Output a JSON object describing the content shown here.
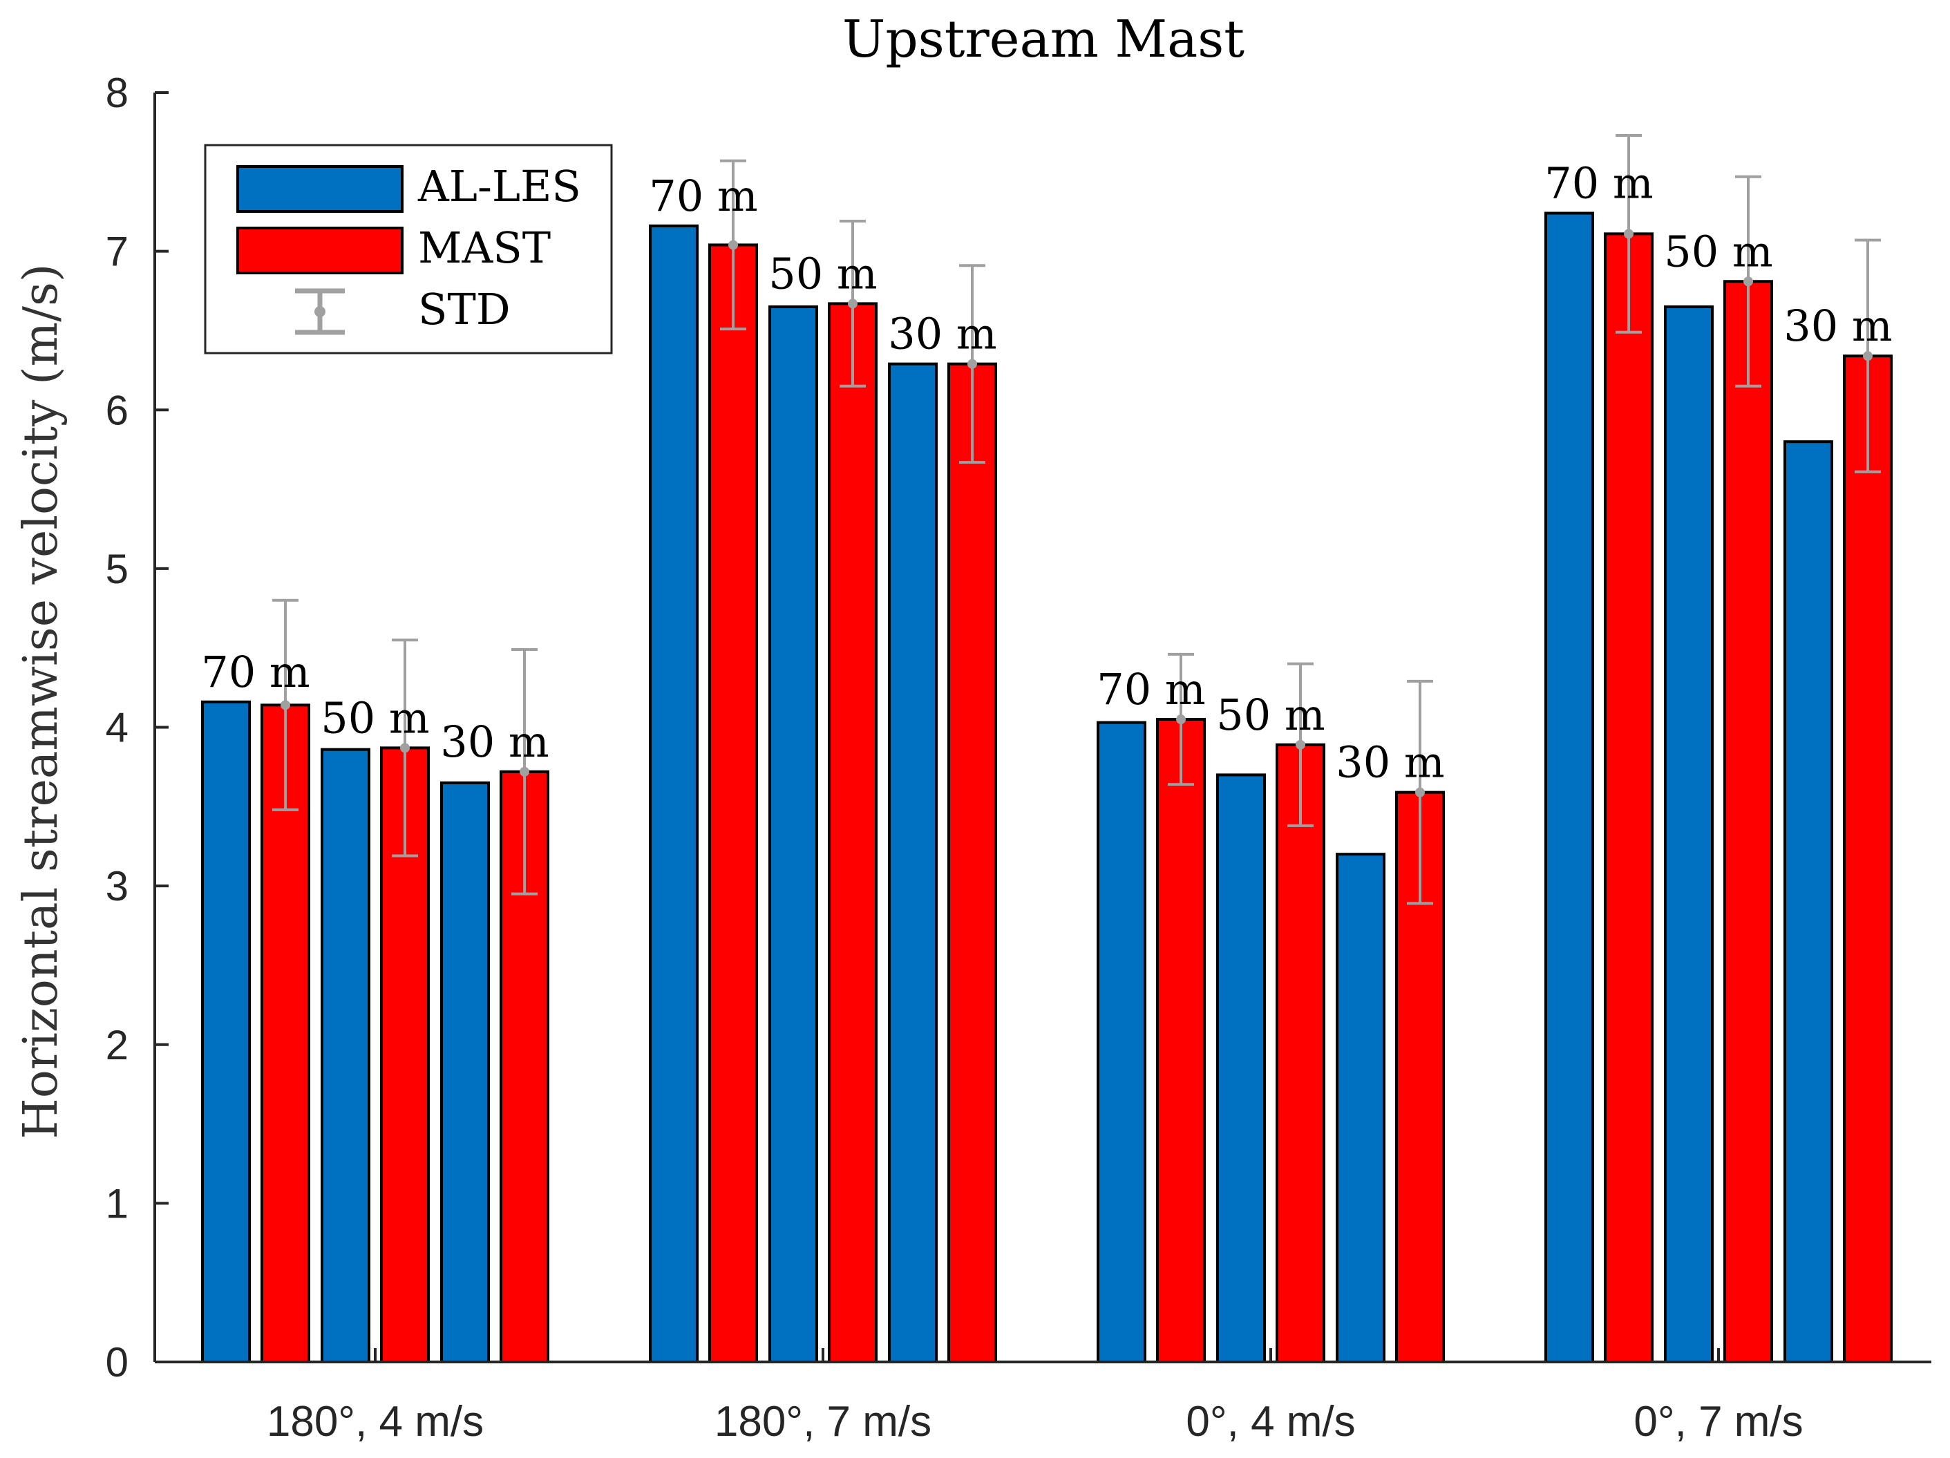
{
  "chart_data": {
    "type": "bar",
    "title": "Upstream Mast",
    "xlabel": "",
    "ylabel": "Horizontal streamwise velocity (m/s)",
    "ylim": [
      0,
      8
    ],
    "yticks": [
      0,
      1,
      2,
      3,
      4,
      5,
      6,
      7,
      8
    ],
    "ytick_labels": [
      "0",
      "1",
      "2",
      "3",
      "4",
      "5",
      "6",
      "7",
      "8"
    ],
    "grid": false,
    "legend_position": "top-left",
    "categories": [
      "180°, 4 m/s",
      "180°, 7 m/s",
      "0°, 4 m/s",
      "0°, 7 m/s"
    ],
    "heights": [
      "70 m",
      "50 m",
      "30 m"
    ],
    "series": [
      {
        "name": "AL-LES",
        "color": "#0070c0",
        "values": [
          [
            4.16,
            3.86,
            3.65
          ],
          [
            7.16,
            6.65,
            6.29
          ],
          [
            4.03,
            3.7,
            3.2
          ],
          [
            7.24,
            6.65,
            5.8
          ]
        ]
      },
      {
        "name": "MAST",
        "color": "#ff0000",
        "values": [
          [
            4.14,
            3.87,
            3.72
          ],
          [
            7.04,
            6.67,
            6.29
          ],
          [
            4.05,
            3.89,
            3.59
          ],
          [
            7.11,
            6.81,
            6.34
          ]
        ],
        "std": [
          [
            0.66,
            0.68,
            0.77
          ],
          [
            0.53,
            0.52,
            0.62
          ],
          [
            0.41,
            0.51,
            0.7
          ],
          [
            0.62,
            0.66,
            0.73
          ]
        ]
      }
    ],
    "error_bar_legend": "STD",
    "error_bar_color": "#a0a0a0"
  }
}
